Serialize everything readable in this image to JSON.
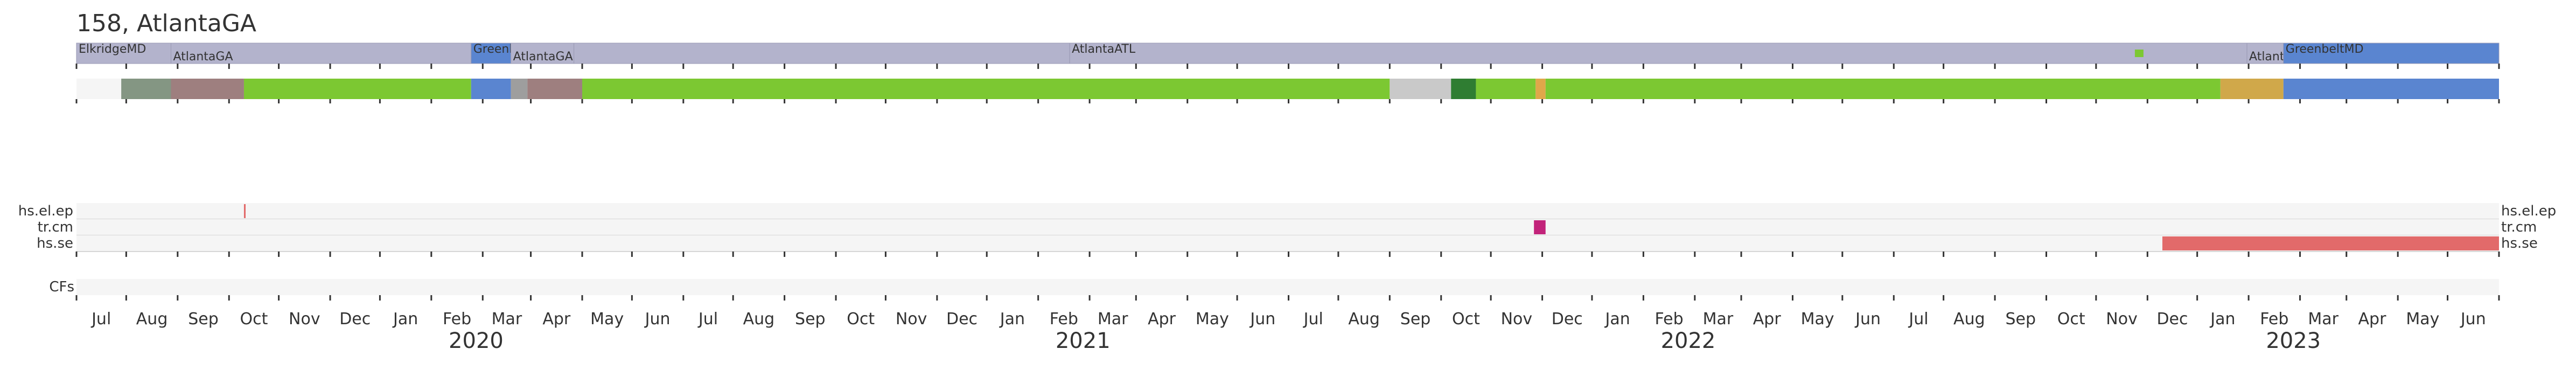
{
  "title": "158, AtlantaGA",
  "timeline": {
    "start": "2019-06-01",
    "end": "2023-06-01",
    "month_labels": [
      "Jul",
      "Aug",
      "Sep",
      "Oct",
      "Nov",
      "Dec",
      "Jan",
      "Feb",
      "Mar",
      "Apr",
      "May",
      "Jun",
      "Jul",
      "Aug",
      "Sep",
      "Oct",
      "Nov",
      "Dec",
      "Jan",
      "Feb",
      "Mar",
      "Apr",
      "May",
      "Jun",
      "Jul",
      "Aug",
      "Sep",
      "Oct",
      "Nov",
      "Dec",
      "Jan",
      "Feb",
      "Mar",
      "Apr",
      "May",
      "Jun",
      "Jul",
      "Aug",
      "Sep",
      "Oct",
      "Nov",
      "Dec",
      "Jan",
      "Feb",
      "Mar",
      "Apr",
      "May",
      "Jun"
    ],
    "year_labels": [
      "2020",
      "2021",
      "2022",
      "2023"
    ]
  },
  "location_track": {
    "segments": [
      {
        "start": "2019-06-01",
        "end": "2019-07-28",
        "color": "#b3b3cc",
        "label": "ElkridgeMD",
        "label_row": "upper"
      },
      {
        "start": "2019-07-28",
        "end": "2020-01-25",
        "color": "#b3b3cc",
        "label": "AtlantaGA",
        "label_row": "lower"
      },
      {
        "start": "2020-01-25",
        "end": "2020-02-18",
        "color": "#5a85d0",
        "label": "GreenbeltMD",
        "label_row": "upper"
      },
      {
        "start": "2020-02-18",
        "end": "2020-03-27",
        "color": "#b3b3cc",
        "label": "AtlantaGA",
        "label_row": "lower"
      },
      {
        "start": "2020-03-27",
        "end": "2021-01-20",
        "color": "#b3b3cc",
        "label": "",
        "label_row": "none"
      },
      {
        "start": "2021-01-20",
        "end": "2022-12-31",
        "color": "#b3b3cc",
        "label": "AtlantaATL",
        "label_row": "upper"
      },
      {
        "start": "2022-12-31",
        "end": "2023-01-22",
        "color": "#b3b3cc",
        "label": "AtlantaGA",
        "label_row": "lower"
      },
      {
        "start": "2023-01-22",
        "end": "2023-06-01",
        "color": "#5a85d0",
        "label": "GreenbeltMD",
        "label_row": "upper"
      }
    ],
    "marker": {
      "date": "2022-10-27",
      "color": "#7cc832"
    }
  },
  "lineage_track": {
    "segments": [
      {
        "start": "2019-06-01",
        "end": "2019-06-28",
        "color": "#f5f5f5"
      },
      {
        "start": "2019-06-28",
        "end": "2019-07-28",
        "color": "#849683"
      },
      {
        "start": "2019-07-28",
        "end": "2019-09-10",
        "color": "#9e7f7f"
      },
      {
        "start": "2019-09-10",
        "end": "2020-01-25",
        "color": "#7cc832"
      },
      {
        "start": "2020-01-25",
        "end": "2020-02-18",
        "color": "#5a85d0"
      },
      {
        "start": "2020-02-18",
        "end": "2020-02-28",
        "color": "#9e9e9e"
      },
      {
        "start": "2020-02-28",
        "end": "2020-04-01",
        "color": "#9e7f7f"
      },
      {
        "start": "2020-04-01",
        "end": "2021-08-01",
        "color": "#7cc832"
      },
      {
        "start": "2021-08-01",
        "end": "2021-09-07",
        "color": "#c9c9c9"
      },
      {
        "start": "2021-09-07",
        "end": "2021-09-22",
        "color": "#2f7d32"
      },
      {
        "start": "2021-09-22",
        "end": "2021-10-28",
        "color": "#7cc832"
      },
      {
        "start": "2021-10-28",
        "end": "2021-11-03",
        "color": "#e0a74a"
      },
      {
        "start": "2021-11-03",
        "end": "2022-12-15",
        "color": "#7cc832"
      },
      {
        "start": "2022-12-15",
        "end": "2023-01-22",
        "color": "#d0a84a"
      },
      {
        "start": "2023-01-22",
        "end": "2023-06-01",
        "color": "#5a85d0"
      }
    ]
  },
  "event_tracks": [
    {
      "name": "hs.el.ep",
      "events": [
        {
          "start": "2019-09-10",
          "end": "2019-09-11",
          "color": "#e26a6a"
        }
      ]
    },
    {
      "name": "tr.cm",
      "events": [
        {
          "start": "2021-10-27",
          "end": "2021-11-03",
          "color": "#c2237a"
        }
      ]
    },
    {
      "name": "hs.se",
      "events": [
        {
          "start": "2022-11-10",
          "end": "2023-06-01",
          "color": "#e26a6a"
        }
      ]
    }
  ],
  "cf_track": {
    "name": "CFs",
    "events": []
  }
}
